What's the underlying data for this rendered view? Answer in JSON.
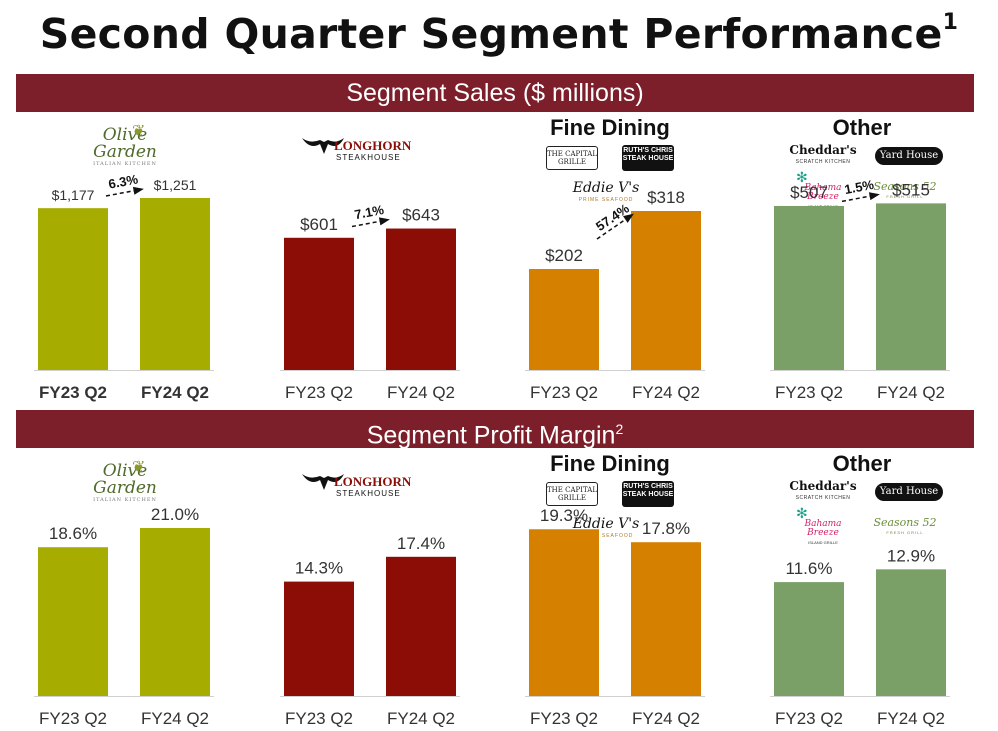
{
  "title": "Second Quarter Segment Performance",
  "title_footnote": "1",
  "sections": {
    "sales": {
      "label": "Segment Sales ($ millions)"
    },
    "margin": {
      "label": "Segment Profit Margin",
      "footnote": "2"
    }
  },
  "segments": [
    {
      "key": "og",
      "heading": "",
      "brand_lines": [
        "Olive",
        "Garden",
        "ITALIAN KITCHEN"
      ],
      "color": "#a6ad00"
    },
    {
      "key": "lh",
      "heading": "",
      "brand_lines": [
        "LONGHORN",
        "STEAKHOUSE"
      ],
      "color": "#8b0d05"
    },
    {
      "key": "fd",
      "heading": "Fine Dining",
      "brands": [
        "THE CAPITAL GRILLE",
        "RUTH'S CHRIS STEAK HOUSE",
        "Eddie V's",
        "PRIME SEAFOOD"
      ],
      "color": "#d68000"
    },
    {
      "key": "ot",
      "heading": "Other",
      "brands": [
        "Cheddar's",
        "SCRATCH KITCHEN",
        "Yard House",
        "Bahama Breeze",
        "ISLAND GRILLE",
        "Seasons 52",
        "FRESH GRILL"
      ],
      "color": "#7aa068"
    }
  ],
  "colors": {
    "band": "#7c1f2b",
    "olive_garden": "#a6ad00",
    "longhorn": "#8b0d05",
    "fine_dining": "#d68000",
    "other": "#7aa068"
  },
  "chart_data": [
    {
      "type": "bar",
      "title": "Olive Garden – Segment Sales ($ millions)",
      "categories": [
        "FY23 Q2",
        "FY24 Q2"
      ],
      "values": [
        1177,
        1251
      ],
      "value_labels": [
        "$1,177",
        "$1,251"
      ],
      "growth_label": "6.3%",
      "ylim": [
        0,
        1600
      ],
      "grid": false
    },
    {
      "type": "bar",
      "title": "LongHorn Steakhouse – Segment Sales ($ millions)",
      "categories": [
        "FY23 Q2",
        "FY24 Q2"
      ],
      "values": [
        601,
        643
      ],
      "value_labels": [
        "$601",
        "$643"
      ],
      "growth_label": "7.1%",
      "ylim": [
        0,
        1000
      ],
      "grid": false
    },
    {
      "type": "bar",
      "title": "Fine Dining – Segment Sales ($ millions)",
      "categories": [
        "FY23 Q2",
        "FY24 Q2"
      ],
      "values": [
        202,
        318
      ],
      "value_labels": [
        "$202",
        "$318"
      ],
      "growth_label": "57.4%",
      "ylim": [
        0,
        440
      ],
      "grid": false
    },
    {
      "type": "bar",
      "title": "Other – Segment Sales ($ millions)",
      "categories": [
        "FY23 Q2",
        "FY24 Q2"
      ],
      "values": [
        507,
        515
      ],
      "value_labels": [
        "$507",
        "$515"
      ],
      "growth_label": "1.5%",
      "ylim": [
        0,
        680
      ],
      "grid": false
    },
    {
      "type": "bar",
      "title": "Olive Garden – Segment Profit Margin",
      "categories": [
        "FY23 Q2",
        "FY24 Q2"
      ],
      "values": [
        18.6,
        21.0
      ],
      "value_labels": [
        "18.6%",
        "21.0%"
      ],
      "ylim": [
        0,
        27
      ],
      "grid": false
    },
    {
      "type": "bar",
      "title": "LongHorn Steakhouse – Segment Profit Margin",
      "categories": [
        "FY23 Q2",
        "FY24 Q2"
      ],
      "values": [
        14.3,
        17.4
      ],
      "value_labels": [
        "14.3%",
        "17.4%"
      ],
      "ylim": [
        0,
        27
      ],
      "grid": false
    },
    {
      "type": "bar",
      "title": "Fine Dining – Segment Profit Margin",
      "categories": [
        "FY23 Q2",
        "FY24 Q2"
      ],
      "values": [
        19.3,
        17.8
      ],
      "value_labels": [
        "19.3%",
        "17.8%"
      ],
      "ylim": [
        0,
        25
      ],
      "grid": false
    },
    {
      "type": "bar",
      "title": "Other – Segment Profit Margin",
      "categories": [
        "FY23 Q2",
        "FY24 Q2"
      ],
      "values": [
        11.6,
        12.9
      ],
      "value_labels": [
        "11.6%",
        "12.9%"
      ],
      "ylim": [
        0,
        22
      ],
      "grid": false
    }
  ]
}
